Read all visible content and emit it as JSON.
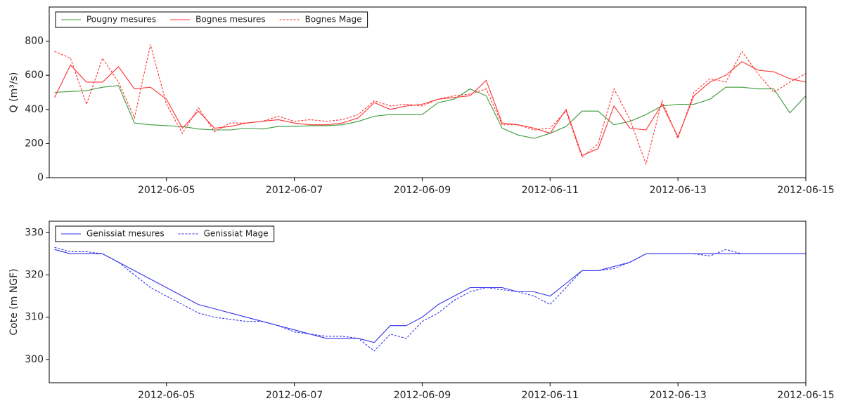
{
  "chart_data": [
    {
      "type": "line",
      "ylabel": "Q (m³/s)",
      "legend": "upper left",
      "x": [
        "2012-06-03 06:00",
        "2012-06-03 12:00",
        "2012-06-03 18:00",
        "2012-06-04 00:00",
        "2012-06-04 06:00",
        "2012-06-04 12:00",
        "2012-06-04 18:00",
        "2012-06-05 00:00",
        "2012-06-05 06:00",
        "2012-06-05 12:00",
        "2012-06-05 18:00",
        "2012-06-06 00:00",
        "2012-06-06 06:00",
        "2012-06-06 12:00",
        "2012-06-06 18:00",
        "2012-06-07 00:00",
        "2012-06-07 06:00",
        "2012-06-07 12:00",
        "2012-06-07 18:00",
        "2012-06-08 00:00",
        "2012-06-08 06:00",
        "2012-06-08 12:00",
        "2012-06-08 18:00",
        "2012-06-09 00:00",
        "2012-06-09 06:00",
        "2012-06-09 12:00",
        "2012-06-09 18:00",
        "2012-06-10 00:00",
        "2012-06-10 06:00",
        "2012-06-10 12:00",
        "2012-06-10 18:00",
        "2012-06-11 00:00",
        "2012-06-11 06:00",
        "2012-06-11 12:00",
        "2012-06-11 18:00",
        "2012-06-12 00:00",
        "2012-06-12 06:00",
        "2012-06-12 12:00",
        "2012-06-12 18:00",
        "2012-06-13 00:00",
        "2012-06-13 06:00",
        "2012-06-13 12:00",
        "2012-06-13 18:00",
        "2012-06-14 00:00",
        "2012-06-14 06:00",
        "2012-06-14 12:00",
        "2012-06-14 18:00",
        "2012-06-15 00:00"
      ],
      "xlim": [
        "2012-06-03 04:00",
        "2012-06-15 00:00"
      ],
      "xticks": [
        "2012-06-05",
        "2012-06-07",
        "2012-06-09",
        "2012-06-11",
        "2012-06-13",
        "2012-06-15"
      ],
      "ylim": [
        0,
        1000
      ],
      "yticks": [
        0,
        200,
        400,
        600,
        800
      ],
      "series": [
        {
          "name": "Pougny mesures",
          "color": "#3a9a3a",
          "dash": false,
          "values": [
            500,
            505,
            510,
            530,
            540,
            320,
            310,
            305,
            300,
            285,
            280,
            280,
            290,
            285,
            300,
            300,
            305,
            305,
            310,
            330,
            360,
            370,
            370,
            370,
            440,
            460,
            520,
            480,
            290,
            250,
            230,
            260,
            300,
            390,
            390,
            310,
            330,
            370,
            420,
            430,
            430,
            460,
            530,
            530,
            520,
            520,
            380,
            480
          ]
        },
        {
          "name": "Bognes mesures",
          "color": "#ff3030",
          "dash": false,
          "values": [
            470,
            660,
            560,
            560,
            650,
            520,
            530,
            460,
            290,
            390,
            290,
            300,
            320,
            330,
            340,
            320,
            310,
            310,
            320,
            350,
            440,
            400,
            420,
            430,
            460,
            470,
            480,
            570,
            320,
            310,
            290,
            260,
            400,
            130,
            170,
            420,
            290,
            280,
            430,
            240,
            480,
            560,
            600,
            680,
            630,
            620,
            580,
            560
          ]
        },
        {
          "name": "Bognes Mage",
          "color": "#ff3030",
          "dash": true,
          "values": [
            740,
            700,
            430,
            700,
            560,
            350,
            780,
            430,
            260,
            410,
            270,
            320,
            320,
            330,
            360,
            330,
            340,
            330,
            340,
            370,
            450,
            420,
            430,
            420,
            460,
            480,
            490,
            520,
            310,
            310,
            280,
            290,
            390,
            120,
            200,
            520,
            340,
            80,
            450,
            230,
            500,
            580,
            560,
            740,
            610,
            500,
            560,
            610
          ]
        }
      ]
    },
    {
      "type": "line",
      "ylabel": "Cote (m NGF)",
      "legend": "upper left",
      "x": [
        "2012-06-03 06:00",
        "2012-06-03 12:00",
        "2012-06-03 18:00",
        "2012-06-04 00:00",
        "2012-06-04 06:00",
        "2012-06-04 12:00",
        "2012-06-04 18:00",
        "2012-06-05 00:00",
        "2012-06-05 06:00",
        "2012-06-05 12:00",
        "2012-06-05 18:00",
        "2012-06-06 00:00",
        "2012-06-06 06:00",
        "2012-06-06 12:00",
        "2012-06-06 18:00",
        "2012-06-07 00:00",
        "2012-06-07 06:00",
        "2012-06-07 12:00",
        "2012-06-07 18:00",
        "2012-06-08 00:00",
        "2012-06-08 06:00",
        "2012-06-08 12:00",
        "2012-06-08 18:00",
        "2012-06-09 00:00",
        "2012-06-09 06:00",
        "2012-06-09 12:00",
        "2012-06-09 18:00",
        "2012-06-10 00:00",
        "2012-06-10 06:00",
        "2012-06-10 12:00",
        "2012-06-10 18:00",
        "2012-06-11 00:00",
        "2012-06-11 06:00",
        "2012-06-11 12:00",
        "2012-06-11 18:00",
        "2012-06-12 00:00",
        "2012-06-12 06:00",
        "2012-06-12 12:00",
        "2012-06-12 18:00",
        "2012-06-13 00:00",
        "2012-06-13 06:00",
        "2012-06-13 12:00",
        "2012-06-13 18:00",
        "2012-06-14 00:00",
        "2012-06-14 06:00",
        "2012-06-14 12:00",
        "2012-06-14 18:00",
        "2012-06-15 00:00"
      ],
      "xlim": [
        "2012-06-03 04:00",
        "2012-06-15 00:00"
      ],
      "xticks": [
        "2012-06-05",
        "2012-06-07",
        "2012-06-09",
        "2012-06-11",
        "2012-06-13",
        "2012-06-15"
      ],
      "ylim": [
        294.5,
        332.7
      ],
      "yticks": [
        300,
        310,
        320,
        330
      ],
      "series": [
        {
          "name": "Genissiat mesures",
          "color": "#3333ee",
          "dash": false,
          "values": [
            326,
            325,
            325,
            325,
            323,
            321,
            319,
            317,
            315,
            313,
            312,
            311,
            310,
            309,
            308,
            307,
            306,
            305,
            305,
            305,
            304,
            308,
            308,
            310,
            313,
            315,
            317,
            317,
            317,
            316,
            316,
            315,
            318,
            321,
            321,
            322,
            323,
            325,
            325,
            325,
            325,
            325,
            325,
            325,
            325,
            325,
            325,
            325
          ]
        },
        {
          "name": "Genissiat Mage",
          "color": "#3333ee",
          "dash": true,
          "values": [
            326.5,
            325.5,
            325.5,
            325,
            323,
            320,
            317,
            315,
            313,
            311,
            310,
            309.5,
            309,
            309,
            308,
            306.5,
            306,
            305.5,
            305.5,
            305,
            302,
            306,
            305,
            309,
            311,
            314,
            316,
            317,
            316.5,
            316,
            315,
            313,
            317,
            321,
            321,
            321.5,
            323,
            325,
            325,
            325,
            325,
            324.5,
            326,
            325,
            325,
            325,
            325,
            325
          ]
        }
      ]
    }
  ]
}
